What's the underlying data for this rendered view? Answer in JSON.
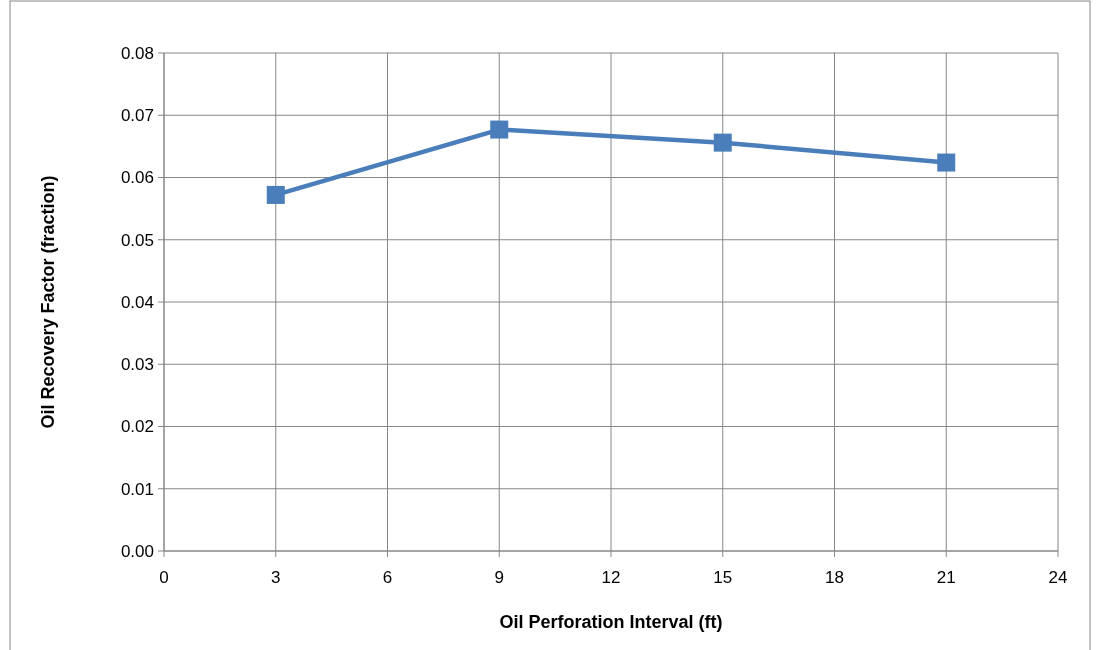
{
  "chart_data": {
    "type": "line",
    "xlabel": "Oil Perforation Interval (ft)",
    "ylabel": "Oil Recovery Factor (fraction)",
    "x": [
      3,
      9,
      15,
      21
    ],
    "series": [
      {
        "color": "#4a7ebb",
        "values": [
          0.0572,
          0.0677,
          0.0656,
          0.0624
        ]
      }
    ],
    "xlim": [
      0,
      24
    ],
    "xticks": [
      0,
      3,
      6,
      9,
      12,
      15,
      18,
      21,
      24
    ],
    "ylim": [
      0,
      0.08
    ],
    "yticks": [
      {
        "value": 0,
        "label": "0.00"
      },
      {
        "value": 0.01,
        "label": "0.01"
      },
      {
        "value": 0.02,
        "label": "0.02"
      },
      {
        "value": 0.03,
        "label": "0.03"
      },
      {
        "value": 0.04,
        "label": "0.04"
      },
      {
        "value": 0.05,
        "label": "0.05"
      },
      {
        "value": 0.06,
        "label": "0.06"
      },
      {
        "value": 0.07,
        "label": "0.07"
      },
      {
        "value": 0.08,
        "label": "0.08"
      }
    ],
    "grid": true,
    "marker": "square",
    "line_style": "solid"
  }
}
